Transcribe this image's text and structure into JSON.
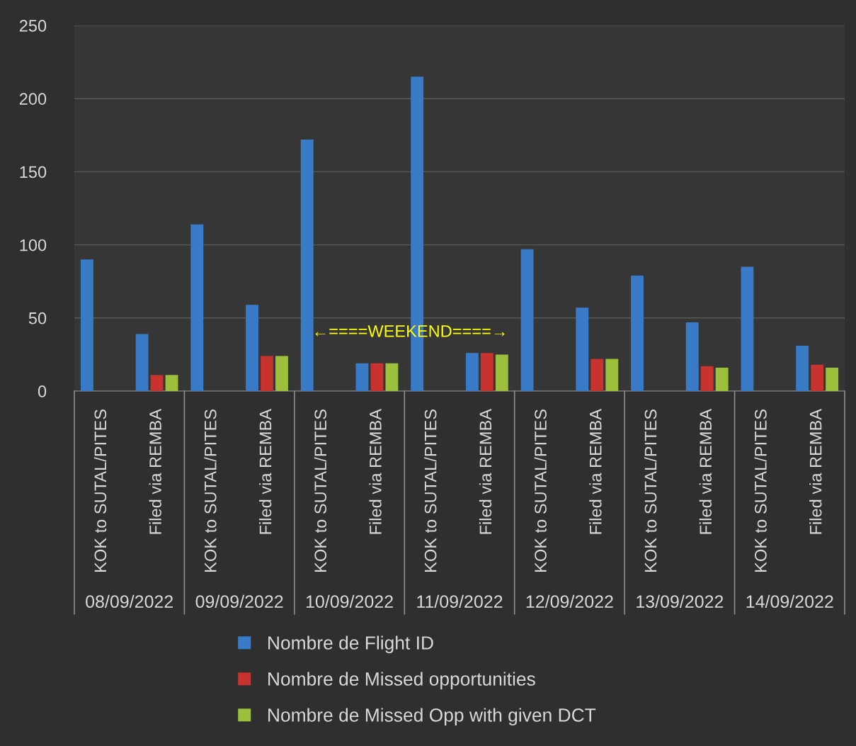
{
  "chart_data": {
    "type": "bar",
    "categories": [
      "KOK to SUTAL/PITES",
      "Filed via REMBA",
      "KOK to SUTAL/PITES",
      "Filed via REMBA",
      "KOK to SUTAL/PITES",
      "Filed via REMBA",
      "KOK to SUTAL/PITES",
      "Filed via REMBA",
      "KOK to SUTAL/PITES",
      "Filed via REMBA",
      "KOK to SUTAL/PITES",
      "Filed via REMBA",
      "KOK to SUTAL/PITES",
      "Filed via REMBA"
    ],
    "series": [
      {
        "name": "Nombre de Flight ID",
        "color": "#3a7bc8",
        "values": [
          90,
          39,
          114,
          59,
          172,
          19,
          215,
          26,
          97,
          57,
          79,
          47,
          85,
          31
        ]
      },
      {
        "name": "Nombre de Missed opportunities",
        "color": "#c8322f",
        "values": [
          null,
          11,
          null,
          24,
          null,
          19,
          null,
          26,
          null,
          22,
          null,
          17,
          null,
          18
        ]
      },
      {
        "name": "Nombre de Missed Opp with given DCT",
        "color": "#9cbf3c",
        "values": [
          null,
          11,
          null,
          24,
          null,
          19,
          null,
          25,
          null,
          22,
          null,
          16,
          null,
          16
        ]
      }
    ],
    "annotations": [
      "08/09/2022",
      "09/09/2022",
      "10/09/2022",
      "11/09/2022",
      "12/09/2022",
      "13/09/2022",
      "14/09/2022",
      "←====WEEKEND====→"
    ],
    "ylim": [
      0,
      250
    ],
    "yticks": [
      0,
      50,
      100,
      150,
      200,
      250
    ],
    "grid": "y",
    "legend": "bottom"
  }
}
